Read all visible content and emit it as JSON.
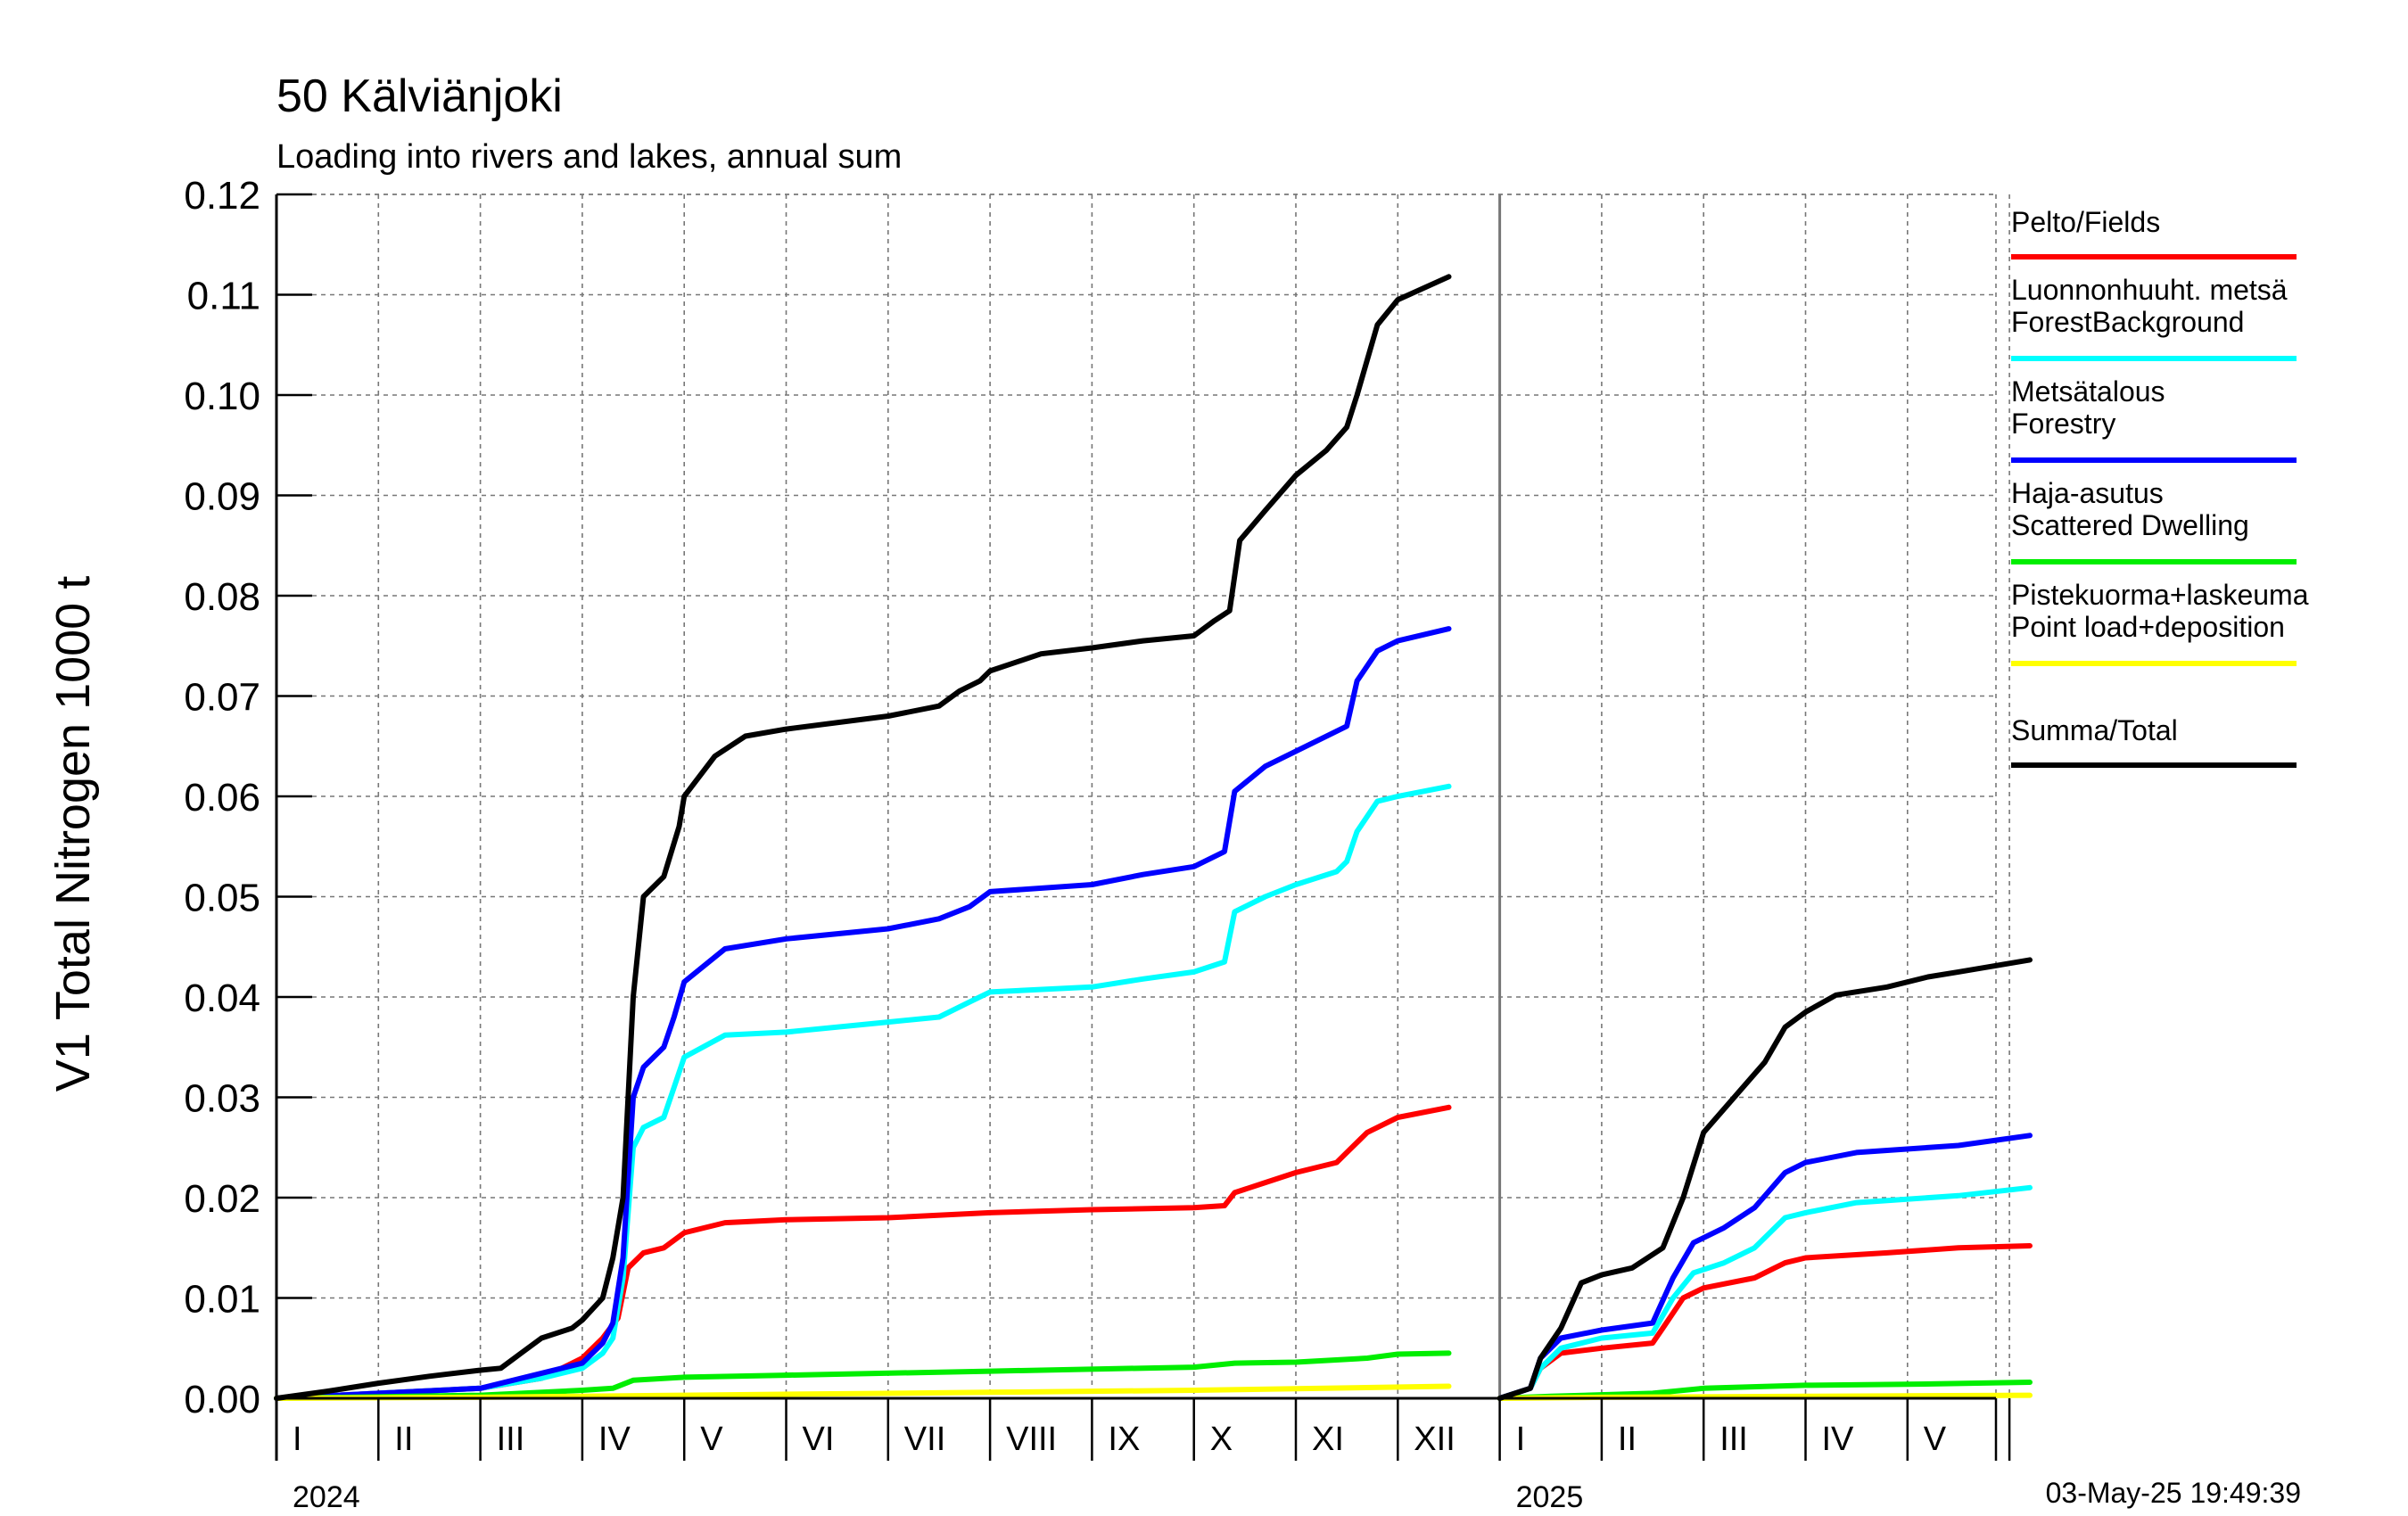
{
  "chart_data": {
    "type": "line",
    "title": "50 Kälviänjoki",
    "subtitle": "Loading into rivers and lakes, annual sum",
    "ylabel": "V1 Total Nitrogen 1000 t",
    "ylim": [
      0,
      0.12
    ],
    "yticks": [
      "0.00",
      "0.01",
      "0.02",
      "0.03",
      "0.04",
      "0.05",
      "0.06",
      "0.07",
      "0.08",
      "0.09",
      "0.10",
      "0.11",
      "0.12"
    ],
    "x_unit": "month index from January 2024",
    "xlim": [
      0,
      17.2
    ],
    "month_labels": [
      "I",
      "II",
      "III",
      "IV",
      "V",
      "VI",
      "VII",
      "VIII",
      "IX",
      "X",
      "XI",
      "XII",
      "I",
      "II",
      "III",
      "IV",
      "V"
    ],
    "year_labels": [
      {
        "label": "2024",
        "start": 0
      },
      {
        "label": "2025",
        "start": 12
      }
    ],
    "grid": true,
    "timestamp": "03-May-25 19:49:39",
    "legend_position": "right",
    "series": [
      {
        "name": "Pelto/Fields",
        "color": "#ff0000",
        "segments": [
          [
            [
              0,
              0
            ],
            [
              1,
              0.0005
            ],
            [
              2,
              0.001
            ],
            [
              2.6,
              0.002
            ],
            [
              3,
              0.004
            ],
            [
              3.2,
              0.006
            ],
            [
              3.35,
              0.008
            ],
            [
              3.45,
              0.013
            ],
            [
              3.6,
              0.0145
            ],
            [
              3.8,
              0.015
            ],
            [
              4,
              0.0165
            ],
            [
              4.4,
              0.0175
            ],
            [
              5,
              0.0178
            ],
            [
              6,
              0.018
            ],
            [
              7,
              0.0185
            ],
            [
              8,
              0.0188
            ],
            [
              9,
              0.019
            ],
            [
              9.3,
              0.0192
            ],
            [
              9.4,
              0.0205
            ],
            [
              9.7,
              0.0215
            ],
            [
              10,
              0.0225
            ],
            [
              10.4,
              0.0235
            ],
            [
              10.5,
              0.0245
            ],
            [
              10.7,
              0.0265
            ],
            [
              11,
              0.028
            ],
            [
              11.5,
              0.029
            ]
          ],
          [
            [
              12,
              0
            ],
            [
              12.3,
              0.001
            ],
            [
              12.4,
              0.003
            ],
            [
              12.6,
              0.0045
            ],
            [
              13,
              0.005
            ],
            [
              13.5,
              0.0055
            ],
            [
              13.6,
              0.007
            ],
            [
              13.8,
              0.01
            ],
            [
              14,
              0.011
            ],
            [
              14.5,
              0.012
            ],
            [
              14.8,
              0.0135
            ],
            [
              15,
              0.014
            ],
            [
              15.8,
              0.0145
            ],
            [
              16.5,
              0.015
            ],
            [
              17.2,
              0.0152
            ]
          ]
        ]
      },
      {
        "name": "Luonnonhuuht. metsä ForestBackground",
        "color": "#00ffff",
        "segments": [
          [
            [
              0,
              0
            ],
            [
              1,
              0.0005
            ],
            [
              2,
              0.001
            ],
            [
              2.6,
              0.002
            ],
            [
              3,
              0.003
            ],
            [
              3.2,
              0.0045
            ],
            [
              3.3,
              0.006
            ],
            [
              3.4,
              0.012
            ],
            [
              3.5,
              0.025
            ],
            [
              3.6,
              0.027
            ],
            [
              3.8,
              0.028
            ],
            [
              3.9,
              0.031
            ],
            [
              4,
              0.034
            ],
            [
              4.4,
              0.0362
            ],
            [
              5,
              0.0365
            ],
            [
              6,
              0.0375
            ],
            [
              6.5,
              0.038
            ],
            [
              6.8,
              0.0395
            ],
            [
              7,
              0.0405
            ],
            [
              8,
              0.041
            ],
            [
              8.5,
              0.0418
            ],
            [
              9,
              0.0425
            ],
            [
              9.3,
              0.0435
            ],
            [
              9.4,
              0.0485
            ],
            [
              9.7,
              0.05
            ],
            [
              10,
              0.0512
            ],
            [
              10.4,
              0.0525
            ],
            [
              10.5,
              0.0535
            ],
            [
              10.6,
              0.0565
            ],
            [
              10.8,
              0.0595
            ],
            [
              11,
              0.06
            ],
            [
              11.5,
              0.061
            ]
          ],
          [
            [
              12,
              0
            ],
            [
              12.3,
              0.001
            ],
            [
              12.4,
              0.003
            ],
            [
              12.6,
              0.005
            ],
            [
              13,
              0.006
            ],
            [
              13.5,
              0.0065
            ],
            [
              13.7,
              0.01
            ],
            [
              13.9,
              0.0125
            ],
            [
              14.2,
              0.0135
            ],
            [
              14.5,
              0.015
            ],
            [
              14.8,
              0.018
            ],
            [
              15,
              0.0185
            ],
            [
              15.5,
              0.0195
            ],
            [
              16.5,
              0.0202
            ],
            [
              17.2,
              0.021
            ]
          ]
        ]
      },
      {
        "name": "Metsätalous Forestry",
        "color": "#0000ff",
        "segments": [
          [
            [
              0,
              0
            ],
            [
              1,
              0.0005
            ],
            [
              2,
              0.001
            ],
            [
              2.6,
              0.0025
            ],
            [
              3,
              0.0035
            ],
            [
              3.2,
              0.0055
            ],
            [
              3.3,
              0.0075
            ],
            [
              3.4,
              0.014
            ],
            [
              3.5,
              0.03
            ],
            [
              3.6,
              0.033
            ],
            [
              3.8,
              0.035
            ],
            [
              3.9,
              0.038
            ],
            [
              4,
              0.0415
            ],
            [
              4.4,
              0.0448
            ],
            [
              5,
              0.0458
            ],
            [
              6,
              0.0468
            ],
            [
              6.5,
              0.0478
            ],
            [
              6.8,
              0.049
            ],
            [
              7,
              0.0505
            ],
            [
              8,
              0.0512
            ],
            [
              8.5,
              0.0522
            ],
            [
              9,
              0.053
            ],
            [
              9.3,
              0.0545
            ],
            [
              9.4,
              0.0605
            ],
            [
              9.7,
              0.063
            ],
            [
              10,
              0.0645
            ],
            [
              10.4,
              0.0665
            ],
            [
              10.5,
              0.067
            ],
            [
              10.6,
              0.0715
            ],
            [
              10.8,
              0.0745
            ],
            [
              11,
              0.0755
            ],
            [
              11.5,
              0.0767
            ]
          ],
          [
            [
              12,
              0
            ],
            [
              12.3,
              0.001
            ],
            [
              12.4,
              0.004
            ],
            [
              12.6,
              0.006
            ],
            [
              13,
              0.0068
            ],
            [
              13.5,
              0.0075
            ],
            [
              13.7,
              0.012
            ],
            [
              13.9,
              0.0155
            ],
            [
              14.2,
              0.017
            ],
            [
              14.5,
              0.019
            ],
            [
              14.8,
              0.0225
            ],
            [
              15,
              0.0235
            ],
            [
              15.5,
              0.0245
            ],
            [
              16.5,
              0.0252
            ],
            [
              17.2,
              0.0262
            ]
          ]
        ]
      },
      {
        "name": "Haja-asutus Scattered Dwelling",
        "color": "#00ee00",
        "segments": [
          [
            [
              0,
              0
            ],
            [
              2,
              0.0003
            ],
            [
              3,
              0.0008
            ],
            [
              3.3,
              0.001
            ],
            [
              3.5,
              0.0018
            ],
            [
              4,
              0.0021
            ],
            [
              5,
              0.0023
            ],
            [
              7,
              0.0027
            ],
            [
              9,
              0.0031
            ],
            [
              9.4,
              0.0035
            ],
            [
              10,
              0.0036
            ],
            [
              10.7,
              0.004
            ],
            [
              11,
              0.0044
            ],
            [
              11.5,
              0.0045
            ]
          ],
          [
            [
              12,
              0
            ],
            [
              12.5,
              0.0002
            ],
            [
              13.5,
              0.0005
            ],
            [
              14,
              0.001
            ],
            [
              15,
              0.0013
            ],
            [
              16,
              0.0014
            ],
            [
              17.2,
              0.0016
            ]
          ]
        ]
      },
      {
        "name": "Pistekuorma+laskeuma Point load+deposition",
        "color": "#ffff00",
        "segments": [
          [
            [
              0,
              0
            ],
            [
              2,
              0.0001
            ],
            [
              4,
              0.0003
            ],
            [
              7,
              0.0006
            ],
            [
              9,
              0.0008
            ],
            [
              11.5,
              0.0012
            ]
          ],
          [
            [
              12,
              0
            ],
            [
              13,
              0.0001
            ],
            [
              15,
              0.0002
            ],
            [
              17.2,
              0.0003
            ]
          ]
        ]
      },
      {
        "name": "Summa/Total",
        "color": "#000000",
        "segments": [
          [
            [
              0,
              0
            ],
            [
              0.5,
              0.0007
            ],
            [
              1,
              0.0015
            ],
            [
              1.5,
              0.0022
            ],
            [
              2,
              0.0028
            ],
            [
              2.2,
              0.003
            ],
            [
              2.4,
              0.0045
            ],
            [
              2.6,
              0.006
            ],
            [
              2.9,
              0.007
            ],
            [
              3,
              0.0078
            ],
            [
              3.2,
              0.01
            ],
            [
              3.3,
              0.014
            ],
            [
              3.4,
              0.02
            ],
            [
              3.5,
              0.04
            ],
            [
              3.6,
              0.05
            ],
            [
              3.8,
              0.052
            ],
            [
              3.95,
              0.057
            ],
            [
              4,
              0.06
            ],
            [
              4.3,
              0.064
            ],
            [
              4.6,
              0.066
            ],
            [
              5,
              0.0667
            ],
            [
              6,
              0.068
            ],
            [
              6.5,
              0.069
            ],
            [
              6.7,
              0.0705
            ],
            [
              6.9,
              0.0715
            ],
            [
              7,
              0.0725
            ],
            [
              7.5,
              0.0742
            ],
            [
              8,
              0.0748
            ],
            [
              8.5,
              0.0755
            ],
            [
              9,
              0.076
            ],
            [
              9.2,
              0.0775
            ],
            [
              9.35,
              0.0785
            ],
            [
              9.45,
              0.0855
            ],
            [
              9.7,
              0.0885
            ],
            [
              10,
              0.092
            ],
            [
              10.3,
              0.0945
            ],
            [
              10.5,
              0.0968
            ],
            [
              10.6,
              0.1
            ],
            [
              10.8,
              0.107
            ],
            [
              11,
              0.1095
            ],
            [
              11.5,
              0.1118
            ]
          ],
          [
            [
              12,
              0
            ],
            [
              12.3,
              0.001
            ],
            [
              12.4,
              0.004
            ],
            [
              12.6,
              0.007
            ],
            [
              12.8,
              0.0115
            ],
            [
              13,
              0.0123
            ],
            [
              13.3,
              0.013
            ],
            [
              13.6,
              0.015
            ],
            [
              13.8,
              0.02
            ],
            [
              14,
              0.0265
            ],
            [
              14.3,
              0.03
            ],
            [
              14.6,
              0.0335
            ],
            [
              14.8,
              0.037
            ],
            [
              15,
              0.0385
            ],
            [
              15.3,
              0.0402
            ],
            [
              15.8,
              0.041
            ],
            [
              16.2,
              0.042
            ],
            [
              16.5,
              0.0425
            ],
            [
              17.2,
              0.0437
            ]
          ]
        ]
      }
    ]
  }
}
